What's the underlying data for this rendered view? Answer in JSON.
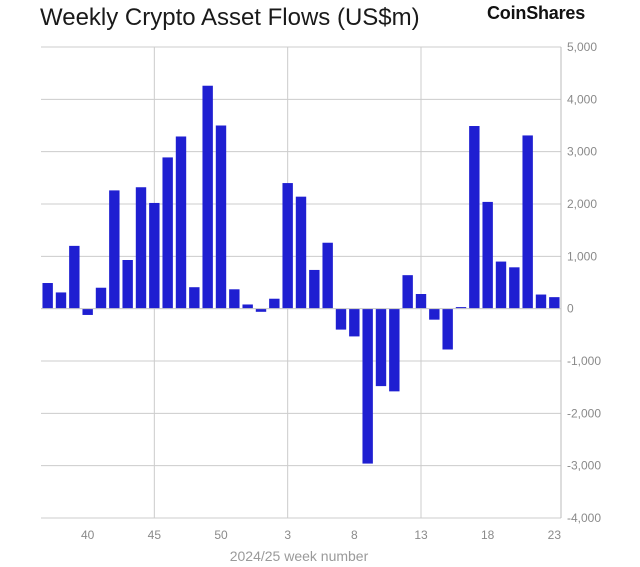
{
  "header": {
    "title": "Weekly Crypto Asset Flows (US$m)",
    "brand": "CoinShares"
  },
  "colors": {
    "bar": "#1f1fd1",
    "grid": "#cccccc",
    "frame": "#bbbbbb",
    "tick_text": "#8a8a8a"
  },
  "chart_data": {
    "type": "bar",
    "title": "Weekly Crypto Asset Flows (US$m)",
    "xlabel": "2024/25 week number",
    "ylabel": "",
    "ylim": [
      -4000,
      5000
    ],
    "y_ticks": [
      5000,
      4000,
      3000,
      2000,
      1000,
      0,
      -1000,
      -2000,
      -3000,
      -4000
    ],
    "y_tick_labels": [
      "5,000",
      "4,000",
      "3,000",
      "2,000",
      "1,000",
      "0",
      "-1,000",
      "-2,000",
      "-3,000",
      "-4,000"
    ],
    "x_tick_labels": [
      "40",
      "45",
      "50",
      "3",
      "8",
      "13",
      "18",
      "23"
    ],
    "x_gridlines_at_weeks": [
      "45",
      "3",
      "13"
    ],
    "grid": true,
    "categories": [
      "37",
      "38",
      "39",
      "40",
      "41",
      "42",
      "43",
      "44",
      "45",
      "46",
      "47",
      "48",
      "49",
      "50",
      "51",
      "52",
      "1",
      "2",
      "3",
      "4",
      "5",
      "6",
      "7",
      "8",
      "9",
      "10",
      "11",
      "12",
      "13",
      "14",
      "15",
      "16",
      "17",
      "18",
      "19",
      "20",
      "21",
      "22",
      "23"
    ],
    "values": [
      490,
      310,
      1200,
      -120,
      400,
      2260,
      930,
      2320,
      2020,
      2890,
      3290,
      410,
      4260,
      3500,
      370,
      80,
      -60,
      190,
      2400,
      2140,
      740,
      1260,
      -400,
      -530,
      -2960,
      -1480,
      -1580,
      640,
      280,
      -210,
      -780,
      30,
      3490,
      2040,
      900,
      790,
      3310,
      270,
      220
    ]
  }
}
